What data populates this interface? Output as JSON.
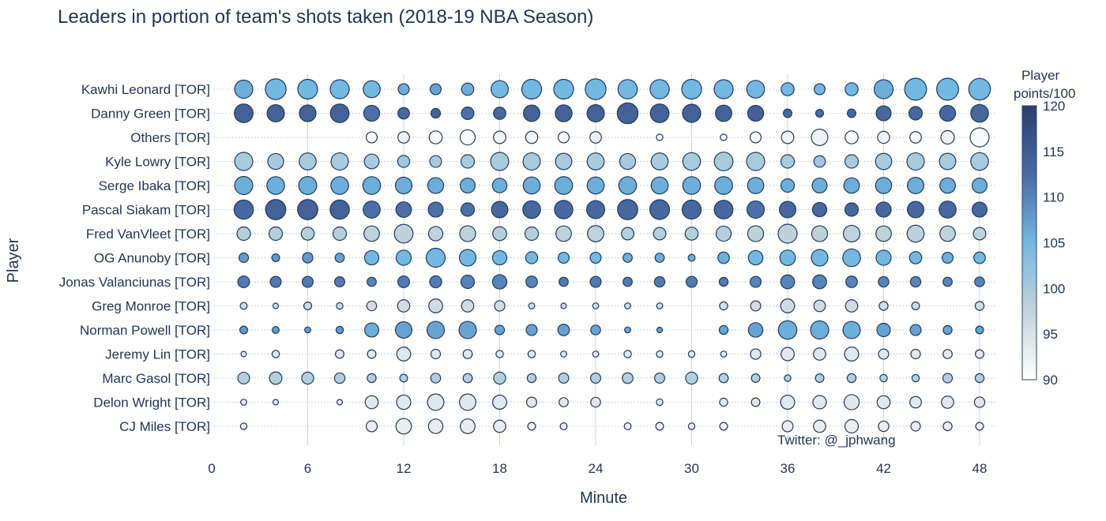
{
  "chart_data": {
    "type": "scatter",
    "subtype": "bubble",
    "title": "Leaders in portion of team's shots taken (2018-19 NBA Season)",
    "xlabel": "Minute",
    "ylabel": "Player",
    "xlim": [
      0,
      49
    ],
    "xticks": [
      0,
      6,
      12,
      18,
      24,
      30,
      36,
      42,
      48
    ],
    "x": [
      2,
      4,
      6,
      8,
      10,
      12,
      14,
      16,
      18,
      20,
      22,
      24,
      26,
      28,
      30,
      32,
      34,
      36,
      38,
      40,
      42,
      44,
      46,
      48
    ],
    "players": [
      "Kawhi Leonard [TOR]",
      "Danny Green [TOR]",
      "Others [TOR]",
      "Kyle Lowry [TOR]",
      "Serge Ibaka [TOR]",
      "Pascal Siakam [TOR]",
      "Fred VanVleet [TOR]",
      "OG Anunoby [TOR]",
      "Jonas Valanciunas [TOR]",
      "Greg Monroe [TOR]",
      "Norman Powell [TOR]",
      "Jeremy Lin [TOR]",
      "Marc Gasol [TOR]",
      "Delon Wright [TOR]",
      "CJ Miles [TOR]"
    ],
    "size_note": "marker size = portion of team's shots taken (relative, 0-1 scale)",
    "sizes": [
      [
        0.55,
        0.72,
        0.65,
        0.6,
        0.48,
        0.2,
        0.2,
        0.25,
        0.5,
        0.65,
        0.65,
        0.72,
        0.62,
        0.62,
        0.65,
        0.6,
        0.52,
        0.28,
        0.2,
        0.28,
        0.6,
        0.8,
        0.8,
        0.78
      ],
      [
        0.58,
        0.5,
        0.46,
        0.58,
        0.42,
        0.22,
        0.15,
        0.26,
        0.25,
        0.45,
        0.47,
        0.5,
        0.72,
        0.58,
        0.55,
        0.44,
        0.42,
        0.12,
        0.1,
        0.12,
        0.37,
        0.3,
        0.42,
        0.52
      ],
      [
        0,
        0,
        0,
        0,
        0.2,
        0.22,
        0.28,
        0.38,
        0.26,
        0.25,
        0.2,
        0.22,
        0,
        0.07,
        0,
        0.07,
        0.2,
        0.26,
        0.45,
        0.28,
        0.24,
        0.22,
        0.3,
        0.6
      ],
      [
        0.55,
        0.42,
        0.48,
        0.5,
        0.36,
        0.24,
        0.23,
        0.3,
        0.55,
        0.5,
        0.45,
        0.48,
        0.42,
        0.48,
        0.52,
        0.58,
        0.55,
        0.3,
        0.22,
        0.3,
        0.44,
        0.5,
        0.45,
        0.52
      ],
      [
        0.55,
        0.52,
        0.54,
        0.52,
        0.52,
        0.46,
        0.42,
        0.37,
        0.35,
        0.48,
        0.53,
        0.48,
        0.52,
        0.48,
        0.52,
        0.53,
        0.44,
        0.3,
        0.37,
        0.4,
        0.43,
        0.45,
        0.4,
        0.37
      ],
      [
        0.62,
        0.68,
        0.68,
        0.62,
        0.48,
        0.4,
        0.37,
        0.3,
        0.45,
        0.52,
        0.56,
        0.54,
        0.68,
        0.65,
        0.6,
        0.58,
        0.5,
        0.45,
        0.34,
        0.3,
        0.38,
        0.45,
        0.48,
        0.37
      ],
      [
        0.3,
        0.3,
        0.28,
        0.3,
        0.4,
        0.58,
        0.34,
        0.42,
        0.32,
        0.3,
        0.4,
        0.44,
        0.26,
        0.26,
        0.28,
        0.38,
        0.42,
        0.6,
        0.42,
        0.46,
        0.4,
        0.48,
        0.4,
        0.26
      ],
      [
        0.15,
        0.1,
        0.18,
        0.14,
        0.34,
        0.38,
        0.6,
        0.46,
        0.34,
        0.24,
        0.2,
        0.2,
        0.14,
        0.14,
        0.08,
        0.22,
        0.35,
        0.4,
        0.46,
        0.52,
        0.38,
        0.25,
        0.2,
        0.22
      ],
      [
        0.23,
        0.2,
        0.2,
        0.17,
        0.14,
        0.23,
        0.24,
        0.3,
        0.34,
        0.22,
        0.14,
        0.2,
        0.14,
        0.18,
        0.2,
        0.13,
        0.2,
        0.32,
        0.32,
        0.22,
        0.18,
        0.18,
        0.14,
        0.16
      ],
      [
        0.08,
        0.05,
        0.1,
        0.07,
        0.16,
        0.25,
        0.32,
        0.25,
        0.18,
        0.06,
        0.05,
        0.06,
        0.06,
        0.06,
        0,
        0.11,
        0.17,
        0.32,
        0.22,
        0.25,
        0.13,
        0.1,
        0,
        0.13
      ],
      [
        0.1,
        0.08,
        0.06,
        0.09,
        0.33,
        0.45,
        0.5,
        0.5,
        0.15,
        0.2,
        0.22,
        0.16,
        0.06,
        0.05,
        0,
        0.13,
        0.35,
        0.57,
        0.55,
        0.5,
        0.3,
        0.2,
        0.13,
        0.1
      ],
      [
        0.05,
        0.09,
        0,
        0.12,
        0.12,
        0.32,
        0.15,
        0.14,
        0.09,
        0.09,
        0.06,
        0.06,
        0.09,
        0.07,
        0.07,
        0.06,
        0.18,
        0.29,
        0.25,
        0.33,
        0.17,
        0.15,
        0.14,
        0.12
      ],
      [
        0.23,
        0.26,
        0.24,
        0.18,
        0.13,
        0.1,
        0.16,
        0.14,
        0.24,
        0.13,
        0.17,
        0.17,
        0.19,
        0.17,
        0.24,
        0.14,
        0.12,
        0.07,
        0.12,
        0.13,
        0.09,
        0.09,
        0.15,
        0.13
      ],
      [
        0.06,
        0.05,
        0,
        0.05,
        0.28,
        0.34,
        0.45,
        0.45,
        0.33,
        0.17,
        0.14,
        0.16,
        0,
        0.07,
        0,
        0.11,
        0.12,
        0.33,
        0.3,
        0.38,
        0.28,
        0.22,
        0.25,
        0.18
      ],
      [
        0.07,
        0,
        0,
        0,
        0.2,
        0.4,
        0.35,
        0.36,
        0.25,
        0.1,
        0.08,
        0,
        0.08,
        0.1,
        0.07,
        0.1,
        0,
        0.2,
        0.25,
        0.3,
        0.18,
        0.15,
        0.13,
        0.1
      ]
    ],
    "colors_note": "marker color = Player points/100 (colorbar 90-120)",
    "colors": [
      [
        106,
        105,
        105,
        105,
        105,
        106,
        107,
        106,
        105,
        105,
        105,
        105,
        105,
        105,
        105,
        105,
        105,
        105,
        105,
        105,
        106,
        105,
        105,
        105
      ],
      [
        114,
        114,
        114,
        114,
        112,
        113,
        114,
        112,
        113,
        114,
        114,
        114,
        114,
        114,
        114,
        114,
        114,
        113,
        113,
        113,
        113,
        113,
        113,
        113
      ],
      [
        90,
        90,
        90,
        90,
        91,
        92,
        91,
        90,
        92,
        92,
        91,
        92,
        90,
        91,
        90,
        91,
        91,
        92,
        92,
        91,
        92,
        91,
        92,
        91
      ],
      [
        100,
        100,
        100,
        100,
        100,
        101,
        100,
        100,
        100,
        100,
        100,
        100,
        100,
        100,
        100,
        100,
        100,
        100,
        101,
        100,
        100,
        100,
        100,
        100
      ],
      [
        106,
        106,
        106,
        106,
        106,
        106,
        106,
        106,
        106,
        106,
        106,
        106,
        106,
        106,
        106,
        106,
        106,
        106,
        106,
        106,
        106,
        106,
        106,
        106
      ],
      [
        113,
        114,
        114,
        114,
        112,
        112,
        112,
        112,
        113,
        113,
        113,
        113,
        113,
        113,
        113,
        113,
        112,
        113,
        113,
        113,
        113,
        113,
        113,
        113
      ],
      [
        99,
        99,
        99,
        99,
        98,
        98,
        98,
        98,
        99,
        99,
        98,
        98,
        99,
        99,
        99,
        99,
        98,
        98,
        98,
        98,
        98,
        98,
        98,
        98
      ],
      [
        108,
        108,
        108,
        107,
        105,
        105,
        105,
        105,
        105,
        105,
        105,
        105,
        106,
        106,
        106,
        106,
        105,
        105,
        105,
        105,
        105,
        105,
        106,
        105
      ],
      [
        111,
        111,
        111,
        111,
        110,
        111,
        111,
        110,
        110,
        110,
        111,
        111,
        111,
        111,
        111,
        111,
        110,
        110,
        110,
        110,
        110,
        110,
        110,
        110
      ],
      [
        96,
        96,
        96,
        96,
        96,
        96,
        96,
        96,
        96,
        96,
        96,
        96,
        96,
        96,
        96,
        96,
        96,
        96,
        96,
        96,
        96,
        96,
        96,
        96
      ],
      [
        108,
        108,
        108,
        108,
        106,
        107,
        107,
        107,
        107,
        107,
        107,
        107,
        107,
        107,
        107,
        107,
        107,
        106,
        106,
        106,
        107,
        107,
        107,
        107
      ],
      [
        94,
        94,
        94,
        94,
        94,
        94,
        94,
        94,
        94,
        94,
        94,
        94,
        94,
        94,
        94,
        94,
        94,
        94,
        94,
        94,
        94,
        94,
        94,
        94
      ],
      [
        99,
        99,
        99,
        99,
        99,
        99,
        99,
        99,
        99,
        99,
        99,
        99,
        99,
        99,
        99,
        99,
        99,
        99,
        99,
        99,
        99,
        99,
        99,
        99
      ],
      [
        94,
        94,
        94,
        94,
        94,
        94,
        94,
        94,
        94,
        94,
        94,
        94,
        94,
        94,
        94,
        94,
        94,
        94,
        94,
        94,
        94,
        94,
        94,
        94
      ],
      [
        93,
        93,
        93,
        93,
        93,
        93,
        93,
        93,
        93,
        93,
        93,
        93,
        93,
        93,
        93,
        93,
        93,
        93,
        93,
        93,
        93,
        93,
        93,
        93
      ]
    ],
    "colorbar": {
      "title_line1": "Player",
      "title_line2": "points/100",
      "min": 90,
      "max": 120,
      "ticks": [
        90,
        95,
        100,
        105,
        110,
        115,
        120
      ],
      "colorscale": [
        "#ffffff",
        "#c5d3da",
        "#72b8e0",
        "#4a6aa3",
        "#2c3f6e"
      ]
    },
    "grid": true,
    "legend": "none",
    "annotation": "Twitter: @_jphwang"
  }
}
